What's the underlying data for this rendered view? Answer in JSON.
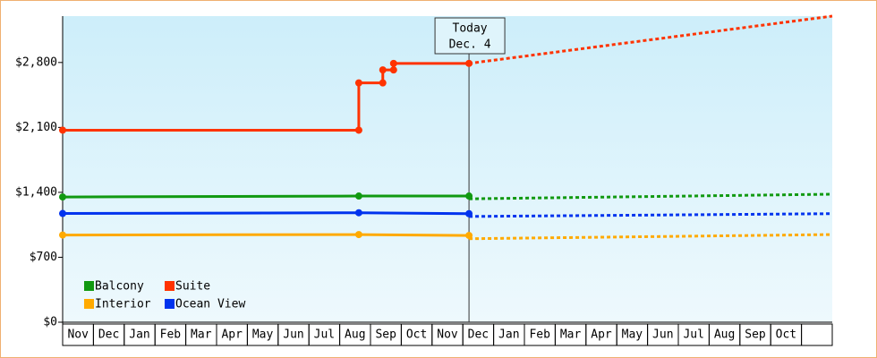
{
  "chart_data": {
    "type": "line",
    "categories": [
      "Nov",
      "Dec",
      "Jan",
      "Feb",
      "Mar",
      "Apr",
      "May",
      "Jun",
      "Jul",
      "Aug",
      "Sep",
      "Oct",
      "Nov",
      "Dec",
      "Jan",
      "Feb",
      "Mar",
      "Apr",
      "May",
      "Jun",
      "Jul",
      "Aug",
      "Sep",
      "Oct",
      null
    ],
    "xlim": [
      0,
      25
    ],
    "ylim": [
      0,
      3300
    ],
    "yticks": [
      {
        "value": 0,
        "label": "$0"
      },
      {
        "value": 700,
        "label": "$700"
      },
      {
        "value": 1400,
        "label": "$1,400"
      },
      {
        "value": 2100,
        "label": "$2,100"
      },
      {
        "value": 2800,
        "label": "$2,800"
      }
    ],
    "annotation": {
      "x": 13.2,
      "lines": [
        "Today",
        "Dec. 4"
      ]
    },
    "series": [
      {
        "name": "Balcony",
        "color": "#119911",
        "x": [
          0,
          9.62,
          13.2
        ],
        "values": [
          1350,
          1360,
          1360
        ],
        "forecast_x": [
          13.2,
          25
        ],
        "forecast_values": [
          1330,
          1380
        ]
      },
      {
        "name": "Suite",
        "color": "#ff3300",
        "x": [
          0,
          9.62,
          9.62,
          10.4,
          10.4,
          10.75,
          10.75,
          13.2
        ],
        "values": [
          2070,
          2070,
          2580,
          2580,
          2720,
          2720,
          2790,
          2790
        ],
        "forecast_x": [
          13.2,
          25
        ],
        "forecast_values": [
          2790,
          3300
        ]
      },
      {
        "name": "Interior",
        "color": "#ffaa00",
        "x": [
          0,
          9.62,
          13.2
        ],
        "values": [
          940,
          945,
          935
        ],
        "forecast_x": [
          13.2,
          25
        ],
        "forecast_values": [
          900,
          945
        ]
      },
      {
        "name": "Ocean View",
        "color": "#0033ee",
        "x": [
          0,
          9.62,
          13.2
        ],
        "values": [
          1172,
          1180,
          1170
        ],
        "forecast_x": [
          13.2,
          25
        ],
        "forecast_values": [
          1140,
          1170
        ]
      }
    ]
  }
}
